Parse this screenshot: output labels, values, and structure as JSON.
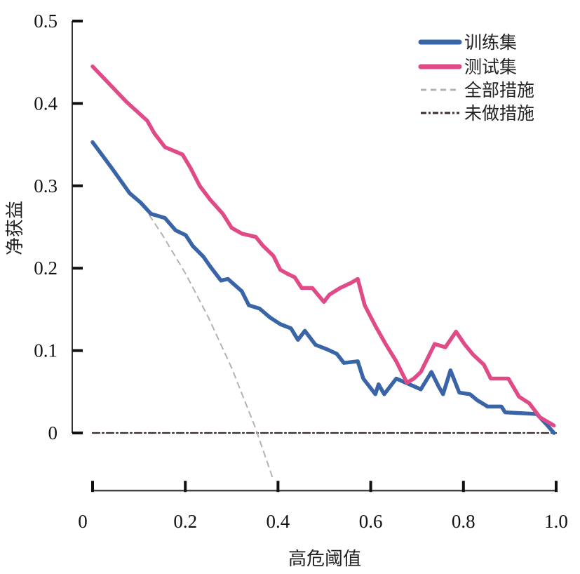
{
  "chart_data": {
    "type": "line",
    "title": "",
    "xlabel": "高危阈值",
    "ylabel": "净获益",
    "xlim": [
      0,
      1.0
    ],
    "ylim": [
      -0.07,
      0.5
    ],
    "x_ticks": [
      "0",
      "0.2",
      "0.4",
      "0.6",
      "0.8",
      "1.0"
    ],
    "x_tick_values": [
      0,
      0.2,
      0.4,
      0.6,
      0.8,
      1.0
    ],
    "y_ticks": [
      "0",
      "0.1",
      "0.2",
      "0.3",
      "0.4",
      "0.5"
    ],
    "y_tick_values": [
      0,
      0.1,
      0.2,
      0.3,
      0.4,
      0.5
    ],
    "grid": false,
    "legend_placement": "top-right",
    "series": [
      {
        "name": "训练集",
        "color": "#3a64a8",
        "style": "solid",
        "x": [
          0.0,
          0.042,
          0.08,
          0.103,
          0.126,
          0.156,
          0.179,
          0.201,
          0.216,
          0.239,
          0.254,
          0.277,
          0.292,
          0.322,
          0.337,
          0.36,
          0.383,
          0.405,
          0.428,
          0.443,
          0.458,
          0.481,
          0.504,
          0.527,
          0.542,
          0.572,
          0.584,
          0.61,
          0.617,
          0.629,
          0.655,
          0.708,
          0.731,
          0.746,
          0.756,
          0.772,
          0.791,
          0.814,
          0.829,
          0.852,
          0.882,
          0.89,
          0.958,
          0.98,
          0.995
        ],
        "y": [
          0.353,
          0.321,
          0.291,
          0.28,
          0.266,
          0.261,
          0.246,
          0.24,
          0.227,
          0.214,
          0.202,
          0.185,
          0.187,
          0.172,
          0.155,
          0.151,
          0.14,
          0.132,
          0.127,
          0.113,
          0.124,
          0.107,
          0.102,
          0.096,
          0.085,
          0.087,
          0.066,
          0.047,
          0.059,
          0.047,
          0.066,
          0.053,
          0.074,
          0.057,
          0.047,
          0.076,
          0.049,
          0.047,
          0.04,
          0.032,
          0.032,
          0.025,
          0.023,
          0.01,
          0.0
        ]
      },
      {
        "name": "测试集",
        "color": "#e04a86",
        "style": "solid",
        "x": [
          0.0,
          0.073,
          0.118,
          0.133,
          0.156,
          0.194,
          0.212,
          0.231,
          0.254,
          0.281,
          0.3,
          0.322,
          0.352,
          0.368,
          0.39,
          0.405,
          0.421,
          0.436,
          0.451,
          0.474,
          0.499,
          0.511,
          0.534,
          0.557,
          0.572,
          0.587,
          0.61,
          0.632,
          0.655,
          0.678,
          0.693,
          0.708,
          0.738,
          0.761,
          0.784,
          0.802,
          0.821,
          0.844,
          0.859,
          0.897,
          0.92,
          0.942,
          0.965,
          0.995
        ],
        "y": [
          0.445,
          0.402,
          0.379,
          0.364,
          0.347,
          0.338,
          0.321,
          0.3,
          0.283,
          0.266,
          0.249,
          0.242,
          0.238,
          0.227,
          0.215,
          0.198,
          0.193,
          0.189,
          0.176,
          0.176,
          0.159,
          0.168,
          0.176,
          0.182,
          0.187,
          0.155,
          0.13,
          0.108,
          0.087,
          0.061,
          0.066,
          0.074,
          0.108,
          0.104,
          0.123,
          0.108,
          0.095,
          0.083,
          0.066,
          0.066,
          0.044,
          0.036,
          0.019,
          0.009
        ]
      },
      {
        "name": "全部措施",
        "color": "#b8b0ae",
        "style": "dashed",
        "x": [
          0.11,
          0.15,
          0.2,
          0.25,
          0.3,
          0.35,
          0.39
        ],
        "y": [
          0.275,
          0.241,
          0.194,
          0.14,
          0.079,
          0.008,
          -0.057
        ]
      },
      {
        "name": "未做措施",
        "color": "#3a2f2c",
        "style": "dashdot",
        "x": [
          0.0,
          1.0
        ],
        "y": [
          0,
          0
        ]
      }
    ]
  }
}
